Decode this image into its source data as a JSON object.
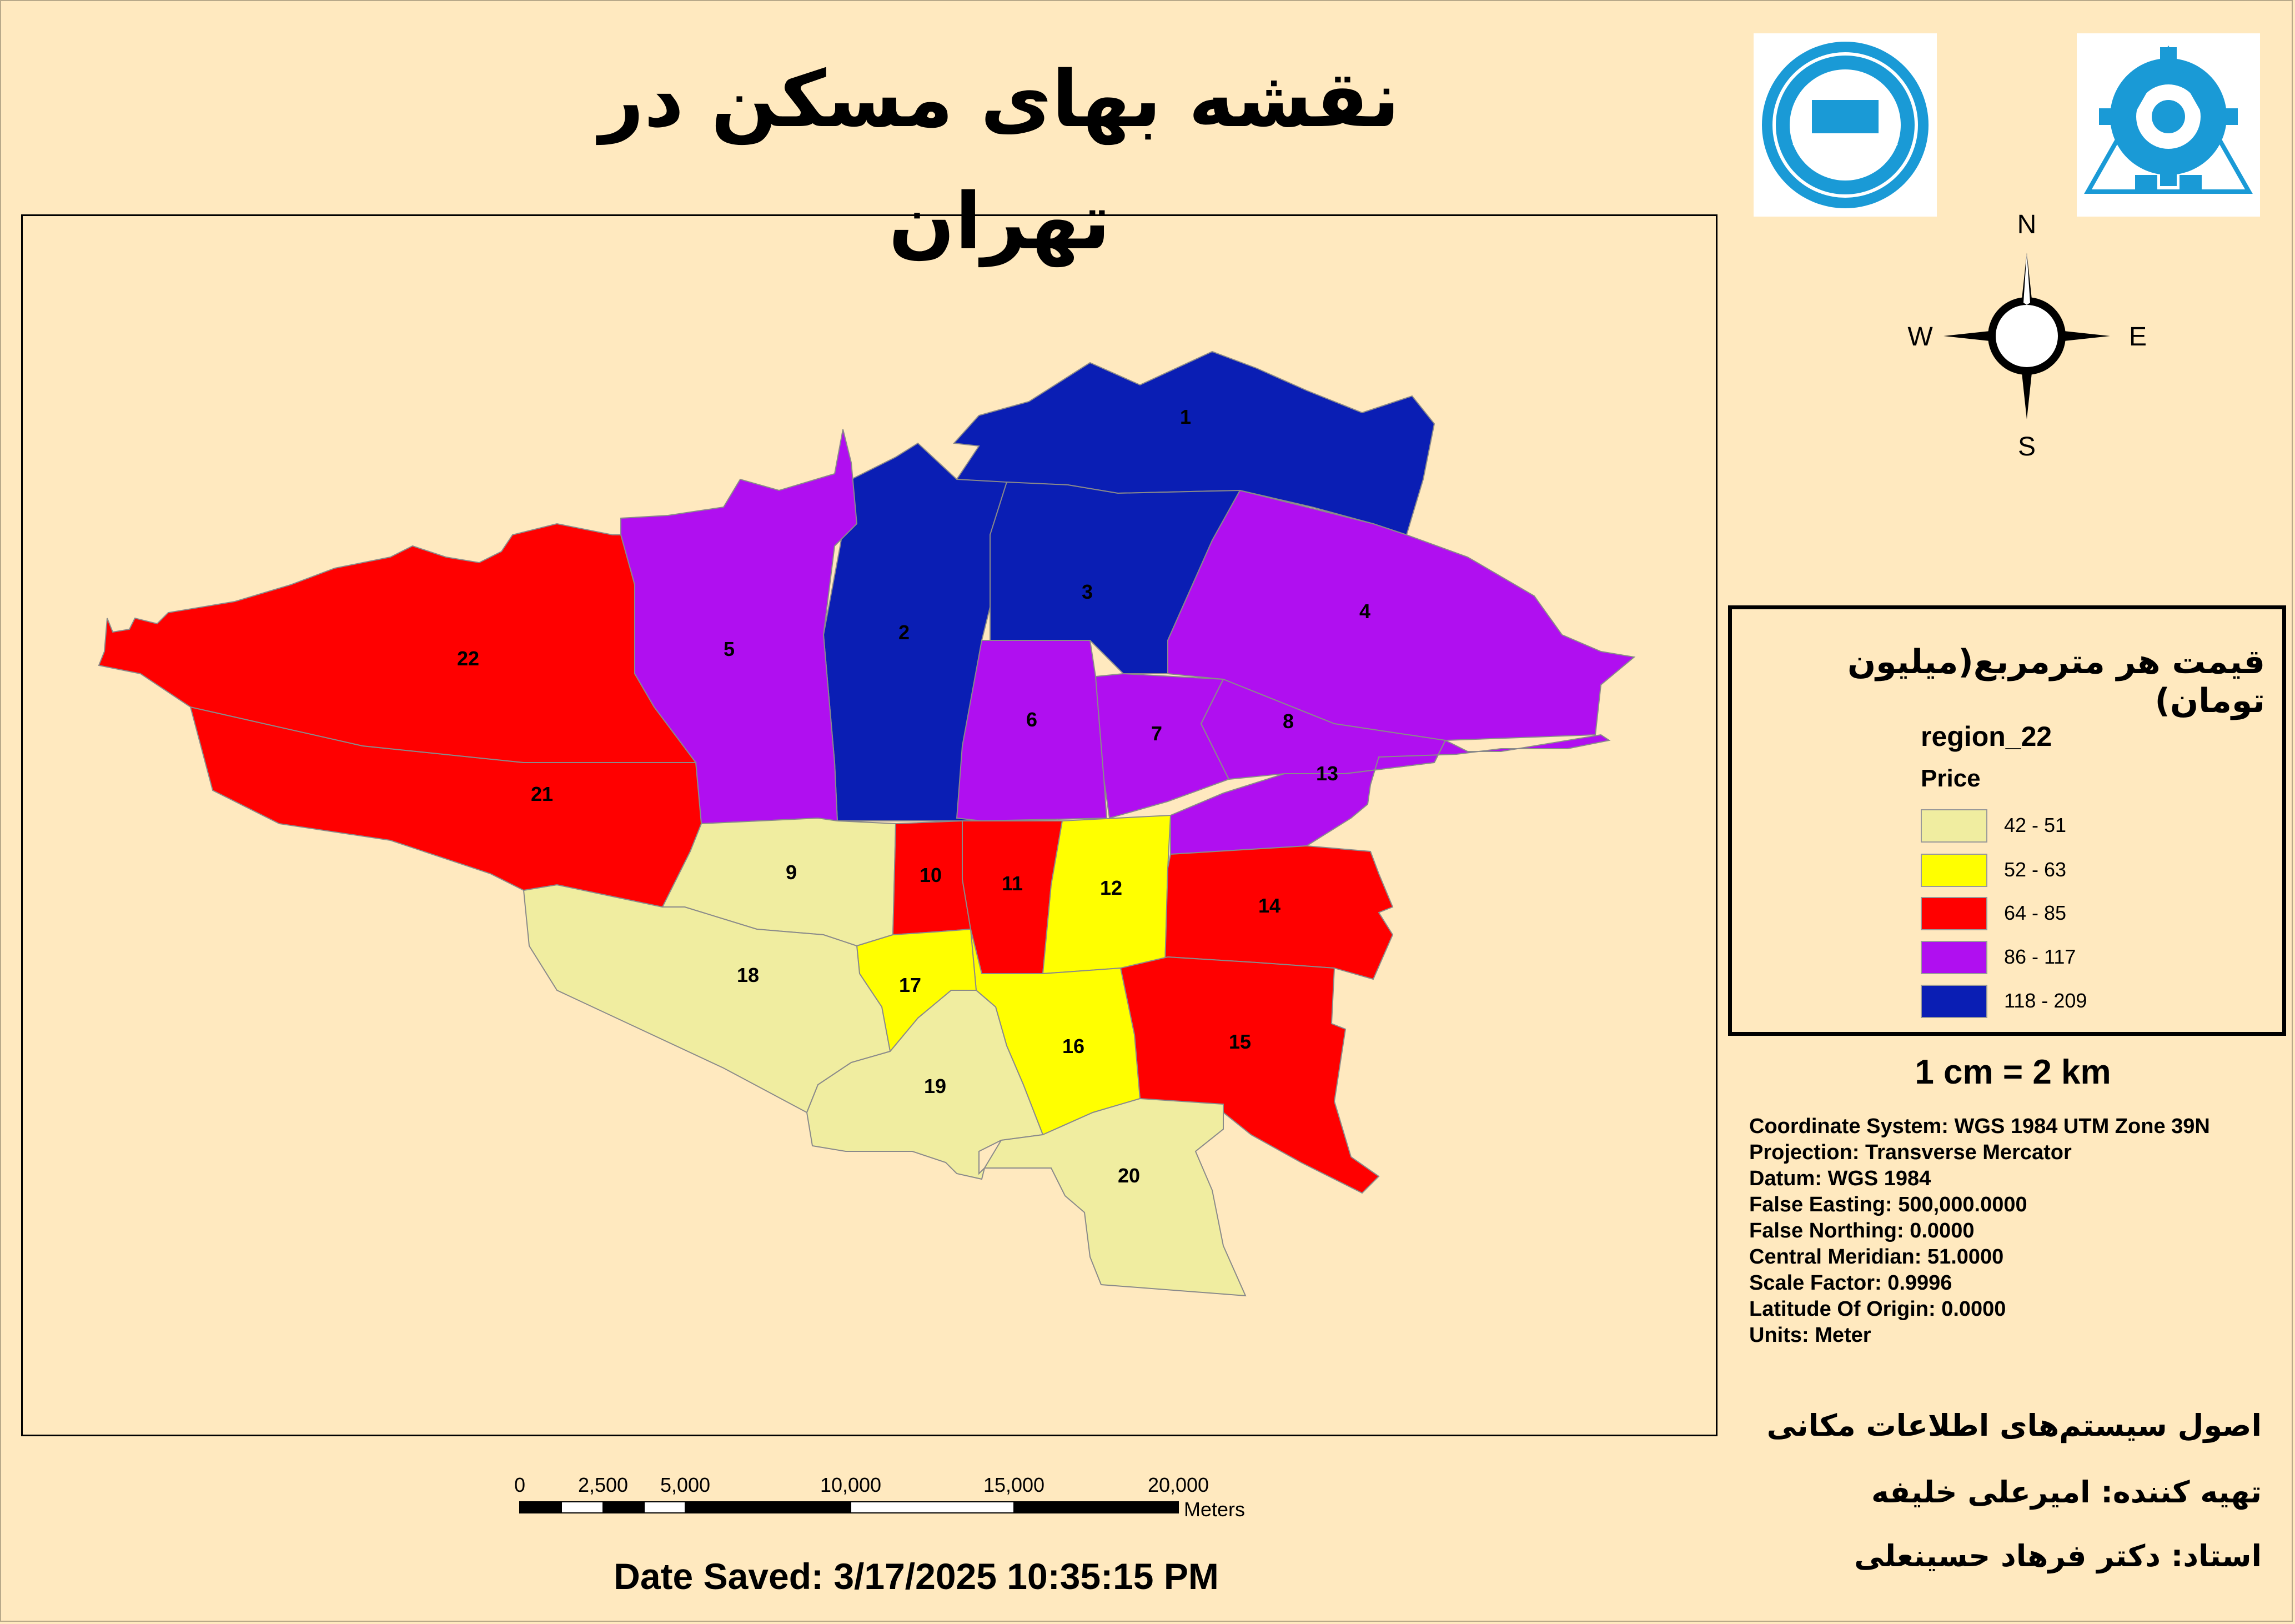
{
  "title": "نقشه بهای مسکن در تهران",
  "compass": {
    "n": "N",
    "s": "S",
    "e": "E",
    "w": "W"
  },
  "legend": {
    "title": "قیمت هر مترمربع(میلیون تومان)",
    "layer": "region_22",
    "field": "Price",
    "classes": [
      {
        "label": "42 - 51",
        "color": "#f0eda0"
      },
      {
        "label": "52 - 63",
        "color": "#ffff00"
      },
      {
        "label": "64 - 85",
        "color": "#ff0000"
      },
      {
        "label": "86 - 117",
        "color": "#b00ff0"
      },
      {
        "label": "118 - 209",
        "color": "#0a1eb4"
      }
    ]
  },
  "regions": [
    {
      "id": "1",
      "class": 4
    },
    {
      "id": "2",
      "class": 4
    },
    {
      "id": "3",
      "class": 4
    },
    {
      "id": "4",
      "class": 3
    },
    {
      "id": "5",
      "class": 3
    },
    {
      "id": "6",
      "class": 3
    },
    {
      "id": "7",
      "class": 3
    },
    {
      "id": "8",
      "class": 3
    },
    {
      "id": "9",
      "class": 0
    },
    {
      "id": "10",
      "class": 2
    },
    {
      "id": "11",
      "class": 2
    },
    {
      "id": "12",
      "class": 1
    },
    {
      "id": "13",
      "class": 3
    },
    {
      "id": "14",
      "class": 2
    },
    {
      "id": "15",
      "class": 2
    },
    {
      "id": "16",
      "class": 1
    },
    {
      "id": "17",
      "class": 1
    },
    {
      "id": "18",
      "class": 0
    },
    {
      "id": "19",
      "class": 0
    },
    {
      "id": "20",
      "class": 0
    },
    {
      "id": "21",
      "class": 2
    },
    {
      "id": "22",
      "class": 2
    }
  ],
  "scale_text": "1 cm = 2 km",
  "projection_info": [
    "Coordinate System: WGS 1984 UTM Zone 39N",
    "Projection: Transverse Mercator",
    "Datum: WGS 1984",
    "False Easting: 500,000.0000",
    "False Northing: 0.0000",
    "Central Meridian: 51.0000",
    "Scale Factor: 0.9996",
    "Latitude Of Origin: 0.0000",
    "Units: Meter"
  ],
  "credits": {
    "course": "اصول سیستم‌های اطلاعات مکانی",
    "author": "تهیه کننده: امیرعلی خلیفه",
    "instructor": "استاد: دکتر فرهاد حسینعلی"
  },
  "scalebar": {
    "ticks": [
      "0",
      "2,500",
      "5,000",
      "10,000",
      "15,000",
      "20,000"
    ],
    "unit": "Meters"
  },
  "date_saved": "Date Saved: 3/17/2025 10:35:15 PM"
}
